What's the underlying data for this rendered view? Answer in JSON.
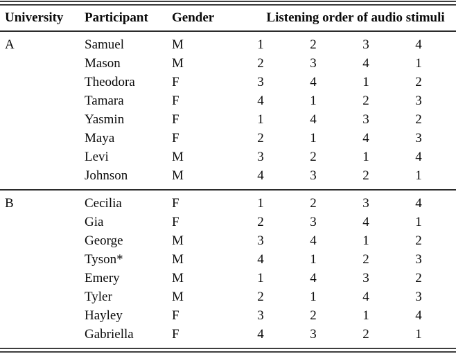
{
  "table": {
    "headers": {
      "university": "University",
      "participant": "Participant",
      "gender": "Gender",
      "listening": "Listening order of audio stimuli"
    },
    "sections": [
      {
        "university": "A",
        "rows": [
          {
            "participant": "Samuel",
            "gender": "M",
            "order": [
              1,
              2,
              3,
              4
            ]
          },
          {
            "participant": "Mason",
            "gender": "M",
            "order": [
              2,
              3,
              4,
              1
            ]
          },
          {
            "participant": "Theodora",
            "gender": "F",
            "order": [
              3,
              4,
              1,
              2
            ]
          },
          {
            "participant": "Tamara",
            "gender": "F",
            "order": [
              4,
              1,
              2,
              3
            ]
          },
          {
            "participant": "Yasmin",
            "gender": "F",
            "order": [
              1,
              4,
              3,
              2
            ]
          },
          {
            "participant": "Maya",
            "gender": "F",
            "order": [
              2,
              1,
              4,
              3
            ]
          },
          {
            "participant": "Levi",
            "gender": "M",
            "order": [
              3,
              2,
              1,
              4
            ]
          },
          {
            "participant": "Johnson",
            "gender": "M",
            "order": [
              4,
              3,
              2,
              1
            ]
          }
        ]
      },
      {
        "university": "B",
        "rows": [
          {
            "participant": "Cecilia",
            "gender": "F",
            "order": [
              1,
              2,
              3,
              4
            ]
          },
          {
            "participant": "Gia",
            "gender": "F",
            "order": [
              2,
              3,
              4,
              1
            ]
          },
          {
            "participant": "George",
            "gender": "M",
            "order": [
              3,
              4,
              1,
              2
            ]
          },
          {
            "participant": "Tyson*",
            "gender": "M",
            "order": [
              4,
              1,
              2,
              3
            ]
          },
          {
            "participant": "Emery",
            "gender": "M",
            "order": [
              1,
              4,
              3,
              2
            ]
          },
          {
            "participant": "Tyler",
            "gender": "M",
            "order": [
              2,
              1,
              4,
              3
            ]
          },
          {
            "participant": "Hayley",
            "gender": "F",
            "order": [
              3,
              2,
              1,
              4
            ]
          },
          {
            "participant": "Gabriella",
            "gender": "F",
            "order": [
              4,
              3,
              2,
              1
            ]
          }
        ]
      }
    ],
    "rule_colors": {
      "outer_double": "#3d3d3d",
      "inner_single": "#2b2b2b"
    }
  }
}
